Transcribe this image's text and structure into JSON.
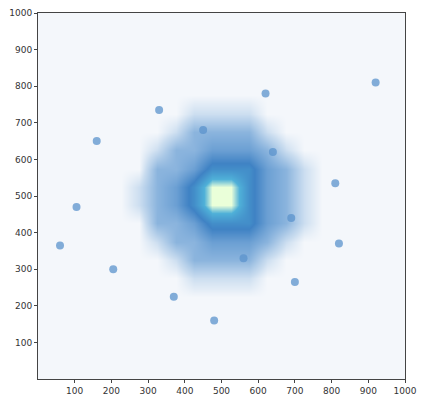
{
  "chart_data": {
    "type": "heatmap",
    "x": [
      25,
      75,
      125,
      175,
      225,
      275,
      325,
      375,
      425,
      475,
      525,
      575,
      625,
      675,
      725,
      775,
      825,
      875,
      925,
      975
    ],
    "y": [
      25,
      75,
      125,
      175,
      225,
      275,
      325,
      375,
      425,
      475,
      525,
      575,
      625,
      675,
      725,
      775,
      825,
      875,
      925,
      975
    ],
    "cells": [
      [
        1,
        1,
        1,
        1,
        1,
        1,
        1,
        1,
        1,
        1,
        1,
        1,
        1,
        1,
        1,
        1,
        1,
        1,
        1,
        1
      ],
      [
        1,
        1,
        1,
        1,
        1,
        1,
        1,
        1,
        1,
        1,
        1,
        1,
        1,
        1,
        1,
        1,
        1,
        1,
        1,
        1
      ],
      [
        1,
        1,
        1,
        1,
        1,
        1,
        1,
        1,
        1,
        1,
        1,
        1,
        1,
        1,
        1,
        1,
        1,
        1,
        1,
        1
      ],
      [
        1,
        1,
        1,
        1,
        1,
        1,
        1,
        1,
        1,
        1,
        1,
        1,
        1,
        1,
        1,
        1,
        1,
        1,
        1,
        1
      ],
      [
        1,
        1,
        1,
        1,
        1,
        1,
        1,
        1,
        1,
        1,
        1,
        1,
        1,
        1,
        1,
        1,
        1,
        1,
        1,
        1
      ],
      [
        1,
        1,
        1,
        1,
        1,
        1,
        1,
        1,
        2,
        2,
        2,
        2,
        1,
        1,
        1,
        1,
        1,
        1,
        1,
        1
      ],
      [
        1,
        1,
        1,
        1,
        1,
        1,
        1,
        2,
        4,
        4,
        4,
        4,
        2,
        1,
        1,
        1,
        1,
        1,
        1,
        1
      ],
      [
        1,
        1,
        1,
        1,
        1,
        1,
        2,
        4,
        4,
        5,
        5,
        5,
        4,
        2,
        1,
        1,
        1,
        1,
        1,
        1
      ],
      [
        1,
        1,
        1,
        1,
        1,
        1,
        4,
        4,
        5,
        7,
        7,
        7,
        5,
        4,
        2,
        1,
        1,
        1,
        1,
        1
      ],
      [
        1,
        1,
        1,
        1,
        1,
        2,
        4,
        5,
        7,
        10,
        10,
        7,
        5,
        4,
        2,
        1,
        1,
        1,
        1,
        1
      ],
      [
        1,
        1,
        1,
        1,
        1,
        2,
        4,
        5,
        7,
        10,
        10,
        7,
        5,
        4,
        2,
        1,
        1,
        1,
        1,
        1
      ],
      [
        1,
        1,
        1,
        1,
        1,
        1,
        4,
        4,
        5,
        7,
        7,
        7,
        5,
        4,
        2,
        1,
        1,
        1,
        1,
        1
      ],
      [
        1,
        1,
        1,
        1,
        1,
        1,
        2,
        4,
        4,
        5,
        5,
        5,
        4,
        2,
        1,
        1,
        1,
        1,
        1,
        1
      ],
      [
        1,
        1,
        1,
        1,
        1,
        1,
        1,
        2,
        4,
        4,
        4,
        4,
        2,
        1,
        1,
        1,
        1,
        1,
        1,
        1
      ],
      [
        1,
        1,
        1,
        1,
        1,
        1,
        1,
        1,
        2,
        2,
        2,
        2,
        1,
        1,
        1,
        1,
        1,
        1,
        1,
        1
      ],
      [
        1,
        1,
        1,
        1,
        1,
        1,
        1,
        1,
        1,
        1,
        1,
        1,
        1,
        1,
        1,
        1,
        1,
        1,
        1,
        1
      ],
      [
        1,
        1,
        1,
        1,
        1,
        1,
        1,
        1,
        1,
        1,
        1,
        1,
        1,
        1,
        1,
        1,
        1,
        1,
        1,
        1
      ],
      [
        1,
        1,
        1,
        1,
        1,
        1,
        1,
        1,
        1,
        1,
        1,
        1,
        1,
        1,
        1,
        1,
        1,
        1,
        1,
        1
      ],
      [
        1,
        1,
        1,
        1,
        1,
        1,
        1,
        1,
        1,
        1,
        1,
        1,
        1,
        1,
        1,
        1,
        1,
        1,
        1,
        1
      ],
      [
        1,
        1,
        1,
        1,
        1,
        1,
        1,
        1,
        1,
        1,
        1,
        1,
        1,
        1,
        1,
        1,
        1,
        1,
        1,
        1
      ]
    ],
    "points": {
      "x": [
        105,
        205,
        370,
        480,
        330,
        620,
        810,
        820,
        700,
        60,
        920,
        560,
        690,
        160,
        450,
        640
      ],
      "y": [
        470,
        300,
        225,
        160,
        735,
        780,
        535,
        370,
        265,
        365,
        810,
        330,
        440,
        650,
        680,
        620
      ],
      "color": "#5b93cc"
    },
    "xlim": [
      0,
      1000
    ],
    "ylim": [
      0,
      1000
    ],
    "xticks": [
      100,
      200,
      300,
      400,
      500,
      600,
      700,
      800,
      900,
      1000
    ],
    "yticks": [
      100,
      200,
      300,
      400,
      500,
      600,
      700,
      800,
      900,
      1000
    ],
    "grid": false
  }
}
